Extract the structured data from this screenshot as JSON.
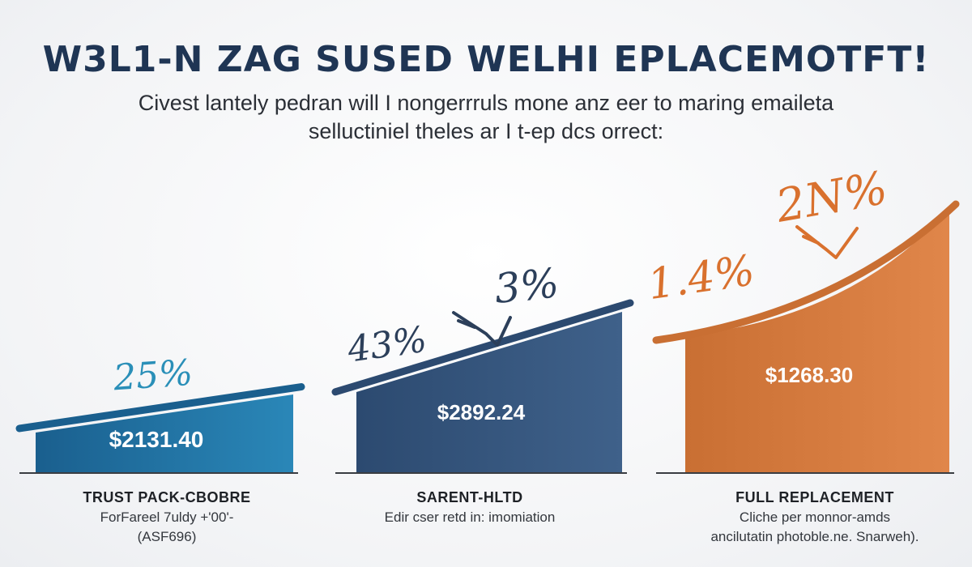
{
  "header": {
    "title": "W3L1-N ZAG SUSED WELHI EPLACEMOTFT!",
    "subtitle_line1": "Civest lantely pedran will I nongerrruls mone anz eer to maring emaileta",
    "subtitle_line2": "selluctiniel theles ar I t-ep dcs orrect:"
  },
  "chart_data": {
    "type": "bar",
    "categories": [
      "TRUST PACK-CBOBRE",
      "SARENT-HLTD",
      "FULL REPLACEMENT"
    ],
    "values": [
      2131.4,
      2892.24,
      1268.3
    ],
    "value_labels": [
      "$2131.40",
      "$2892.24",
      "$1268.30"
    ],
    "percent_labels": [
      [
        "25%"
      ],
      [
        "43%",
        "3%"
      ],
      [
        "1.4%",
        "2N%"
      ]
    ],
    "colors": [
      "#2a87b8",
      "#3f618a",
      "#e0864a"
    ],
    "shade_colors": [
      "#1a5f8e",
      "#2c4a70",
      "#c96f33"
    ],
    "title": "W3L1-N ZAG SUSED WELHI EPLACEMOTFT!",
    "xlabel": "",
    "ylabel": "",
    "grid": false,
    "legend": "none"
  },
  "categories": [
    {
      "title": "TRUST PACK-CBOBRE",
      "line1": "ForFareel 7uldy +'00'-",
      "line2": "(ASF696)"
    },
    {
      "title": "SARENT-HLTD",
      "line1": "Edir cser retd in: imomiation",
      "line2": ""
    },
    {
      "title": "FULL REPLACEMENT",
      "line1": "Cliche per monnor-amds",
      "line2": "ancilutatin photoble.ne. Snarweh)."
    }
  ]
}
